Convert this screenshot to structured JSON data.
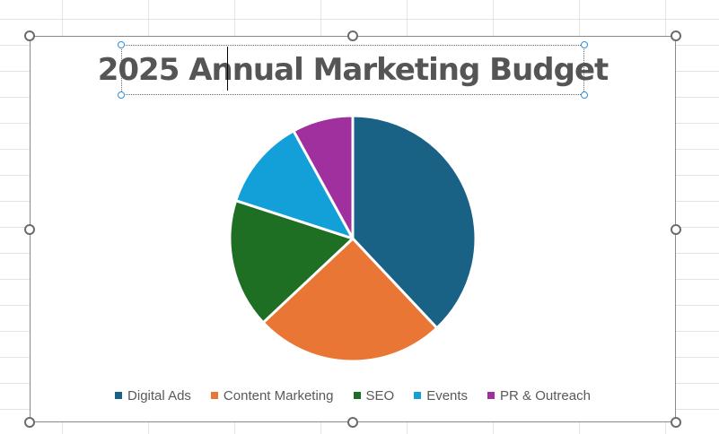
{
  "chart_data": {
    "type": "pie",
    "title": "2025 Annual Marketing Budget",
    "categories": [
      "Digital Ads",
      "Content Marketing",
      "SEO",
      "Events",
      "PR & Outreach"
    ],
    "values": [
      38,
      25,
      17,
      12,
      8
    ],
    "colors": [
      "#1a6186",
      "#e97634",
      "#1e6e24",
      "#139fd8",
      "#a0309d"
    ],
    "legend_position": "bottom"
  }
}
